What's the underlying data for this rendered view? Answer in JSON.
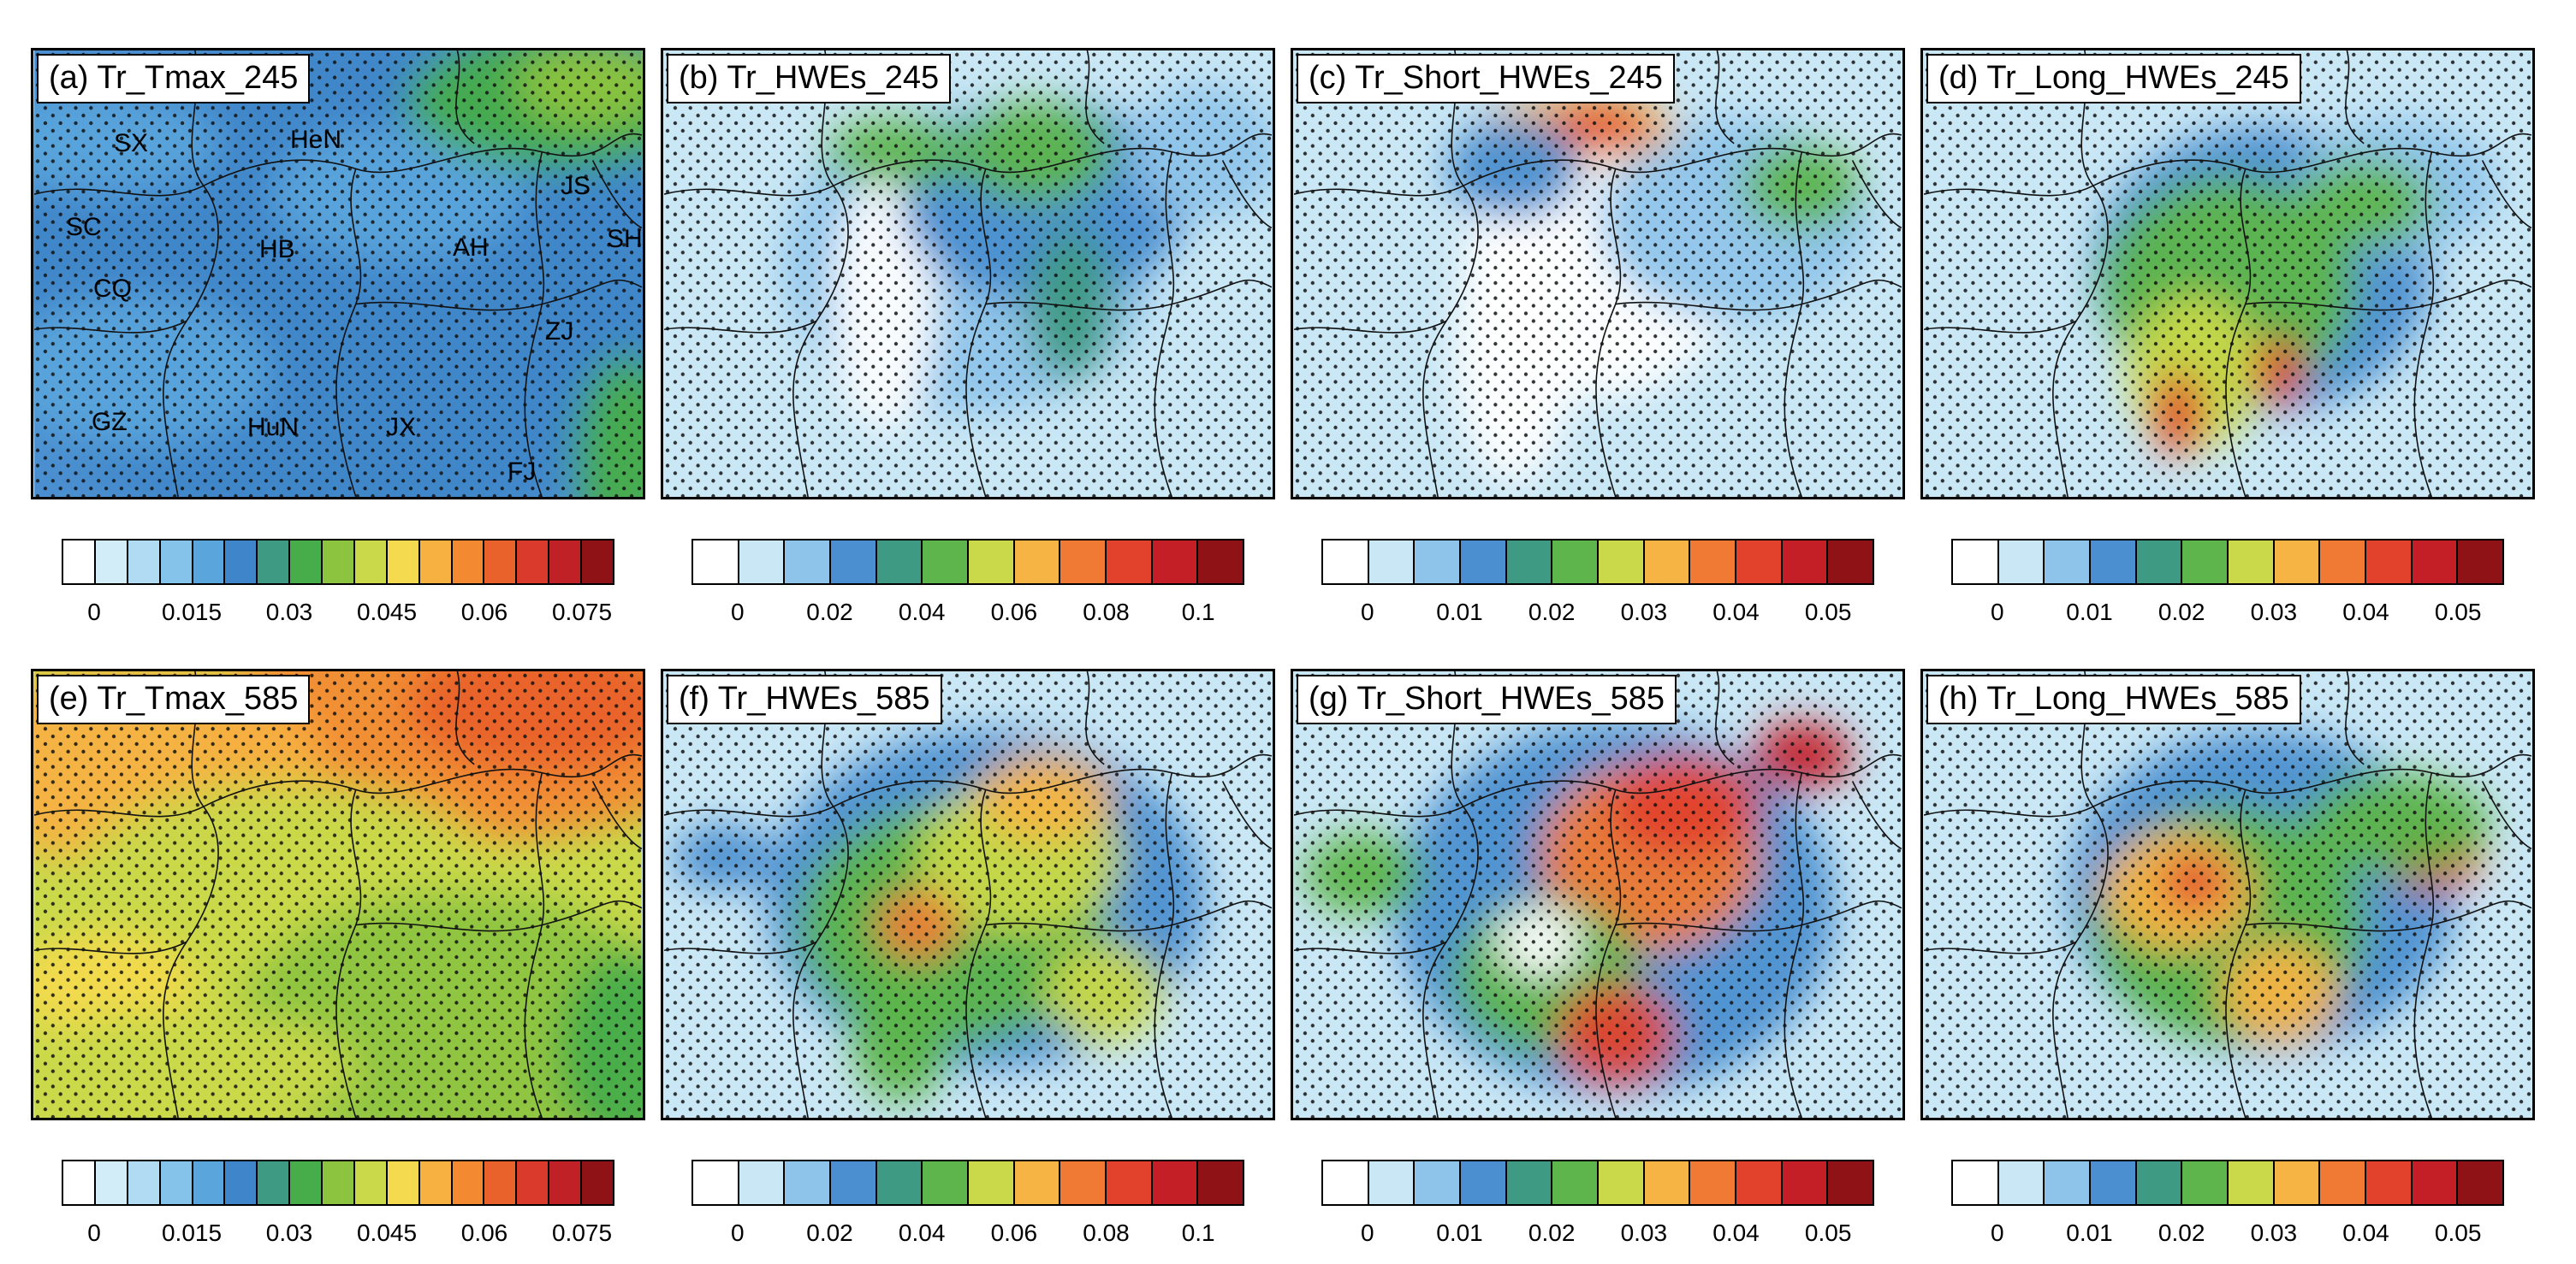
{
  "rows": [
    {
      "panels": [
        {
          "label": "(a) Tr_Tmax_245",
          "variant": "tmax245"
        },
        {
          "label": "(b) Tr_HWEs_245",
          "variant": "hwe245"
        },
        {
          "label": "(c) Tr_Short_HWEs_245",
          "variant": "short245"
        },
        {
          "label": "(d) Tr_Long_HWEs_245",
          "variant": "long245"
        }
      ]
    },
    {
      "panels": [
        {
          "label": "(e) Tr_Tmax_585",
          "variant": "tmax585"
        },
        {
          "label": "(f) Tr_HWEs_585",
          "variant": "hwe585"
        },
        {
          "label": "(g) Tr_Short_HWEs_585",
          "variant": "short585"
        },
        {
          "label": "(h) Tr_Long_HWEs_585",
          "variant": "long585"
        }
      ]
    }
  ],
  "provinces": [
    "SX",
    "HeN",
    "JS",
    "SC",
    "HB",
    "AH",
    "SH",
    "CQ",
    "ZJ",
    "GZ",
    "HuN",
    "JX",
    "FJ"
  ],
  "colorbars": {
    "tmax": {
      "colors": [
        "#ffffff",
        "#d2ecf8",
        "#b0dbf2",
        "#86c3ea",
        "#5aa5dc",
        "#3e86c9",
        "#3e9a83",
        "#46ad4a",
        "#8cc440",
        "#c9d94a",
        "#f4da4e",
        "#f7b140",
        "#f38a32",
        "#e9622b",
        "#d93a2b",
        "#c02127",
        "#8f1216"
      ],
      "ticks": [
        "0",
        "0.015",
        "0.03",
        "0.045",
        "0.06",
        "0.075"
      ],
      "tick_cells": [
        1,
        4,
        7,
        10,
        13,
        16
      ]
    },
    "hwe": {
      "colors": [
        "#ffffff",
        "#c9e7f5",
        "#8ec4ea",
        "#4b8fd0",
        "#3e9a83",
        "#5db54b",
        "#c9d94a",
        "#f6b444",
        "#f07a33",
        "#e2422c",
        "#c41e26",
        "#8f1216"
      ],
      "ticks": [
        "0",
        "0.02",
        "0.04",
        "0.06",
        "0.08",
        "0.1"
      ],
      "tick_cells": [
        1,
        3,
        5,
        7,
        9,
        11
      ]
    },
    "sub": {
      "colors": [
        "#ffffff",
        "#c9e7f5",
        "#8ec4ea",
        "#4b8fd0",
        "#3e9a83",
        "#5db54b",
        "#c9d94a",
        "#f6b444",
        "#f07a33",
        "#e2422c",
        "#c41e26",
        "#8f1216"
      ],
      "ticks": [
        "0",
        "0.01",
        "0.02",
        "0.03",
        "0.04",
        "0.05"
      ],
      "tick_cells": [
        1,
        3,
        5,
        7,
        9,
        11
      ]
    }
  },
  "colorbar_order": [
    "tmax",
    "hwe",
    "sub",
    "sub"
  ]
}
